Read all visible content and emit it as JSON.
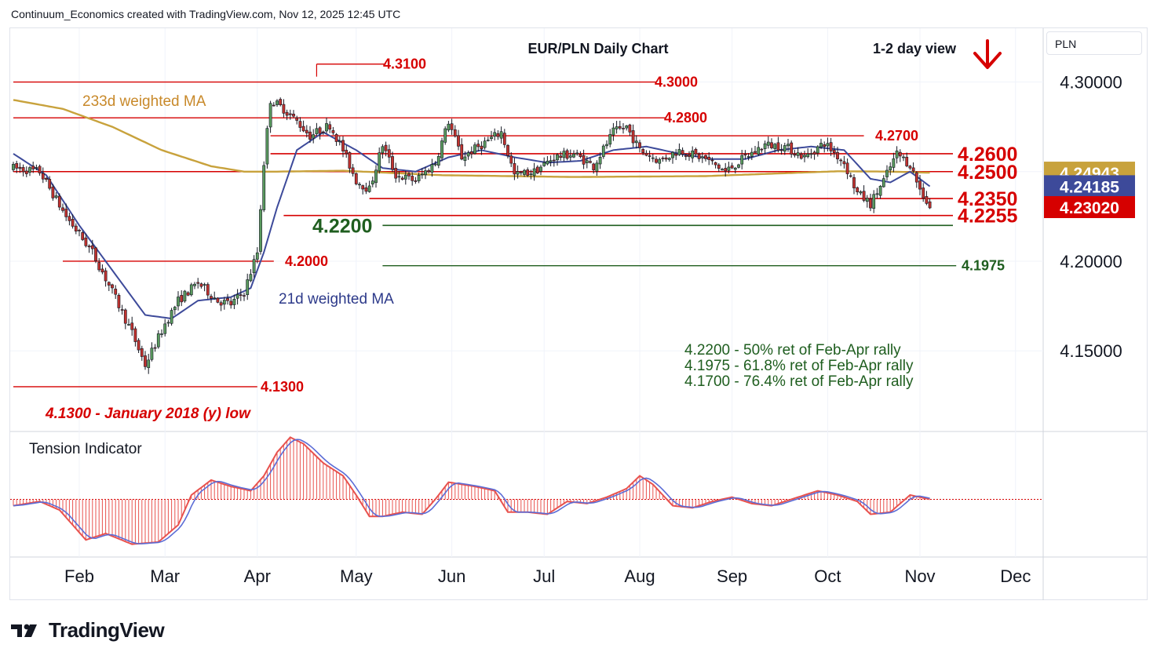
{
  "header": {
    "attribution": "Continuum_Economics created with TradingView.com, Nov 12, 2025 12:45 UTC"
  },
  "brand": {
    "name": "TradingView"
  },
  "currency_label": "PLN",
  "chart_data": [
    {
      "type": "candlestick",
      "title": "EUR/PLN Daily Chart",
      "view_label": "1-2 day view",
      "view_icon": "arrow-down-icon",
      "ylim": [
        4.105,
        4.33
      ],
      "y_ticks": [
        "4.30000",
        "4.20000",
        "4.15000"
      ],
      "x_ticks": [
        "Feb",
        "Mar",
        "Apr",
        "May",
        "Jun",
        "Jul",
        "Aug",
        "Sep",
        "Oct",
        "Nov",
        "Dec"
      ],
      "price_badges": [
        {
          "value": "4.24943",
          "color": "#c8a23c",
          "y": 4.24943
        },
        {
          "value": "4.24185",
          "color": "#3d4a9a",
          "y": 4.24185
        },
        {
          "value": "4.23020",
          "color": "#d60000",
          "y": 4.2302
        }
      ],
      "levels": [
        {
          "label": "4.3100",
          "value": 4.31,
          "color": "#d60000",
          "style": "small"
        },
        {
          "label": "4.3000",
          "value": 4.3,
          "color": "#d60000",
          "style": "small"
        },
        {
          "label": "4.2800",
          "value": 4.28,
          "color": "#d60000",
          "style": "small"
        },
        {
          "label": "4.2700",
          "value": 4.27,
          "color": "#d60000",
          "style": "small"
        },
        {
          "label": "4.2600",
          "value": 4.26,
          "color": "#d60000",
          "style": "large"
        },
        {
          "label": "4.2500",
          "value": 4.25,
          "color": "#d60000",
          "style": "large"
        },
        {
          "label": "4.2350",
          "value": 4.235,
          "color": "#d60000",
          "style": "large"
        },
        {
          "label": "4.2255",
          "value": 4.2255,
          "color": "#d60000",
          "style": "large"
        },
        {
          "label": "4.2200",
          "value": 4.22,
          "color": "#1f5e1f",
          "style": "large"
        },
        {
          "label": "4.2000",
          "value": 4.2,
          "color": "#d60000",
          "style": "small"
        },
        {
          "label": "4.1975",
          "value": 4.1975,
          "color": "#1f5e1f",
          "style": "small"
        },
        {
          "label": "4.1300",
          "value": 4.13,
          "color": "#d60000",
          "style": "small"
        }
      ],
      "ma_labels": {
        "ma233": "233d weighted MA",
        "ma21": "21d weighted MA"
      },
      "annotations": {
        "low_note": "4.1300 - January 2018 (y) low",
        "retracements": [
          "4.2200 - 50% ret of Feb-Apr rally",
          "4.1975 - 61.8% ret of Feb-Apr rally",
          "4.1700 - 76.4% ret of Feb-Apr rally"
        ]
      },
      "price_anchors": [
        [
          0,
          4.252
        ],
        [
          8,
          4.25
        ],
        [
          16,
          4.225
        ],
        [
          24,
          4.205
        ],
        [
          30,
          4.183
        ],
        [
          36,
          4.16
        ],
        [
          40,
          4.142
        ],
        [
          46,
          4.165
        ],
        [
          50,
          4.178
        ],
        [
          56,
          4.188
        ],
        [
          62,
          4.178
        ],
        [
          66,
          4.176
        ],
        [
          70,
          4.183
        ],
        [
          74,
          4.205
        ],
        [
          76,
          4.255
        ],
        [
          78,
          4.29
        ],
        [
          82,
          4.285
        ],
        [
          86,
          4.278
        ],
        [
          90,
          4.27
        ],
        [
          96,
          4.276
        ],
        [
          100,
          4.262
        ],
        [
          104,
          4.245
        ],
        [
          108,
          4.24
        ],
        [
          112,
          4.265
        ],
        [
          116,
          4.248
        ],
        [
          122,
          4.245
        ],
        [
          128,
          4.255
        ],
        [
          132,
          4.278
        ],
        [
          136,
          4.258
        ],
        [
          142,
          4.265
        ],
        [
          148,
          4.272
        ],
        [
          152,
          4.248
        ],
        [
          158,
          4.25
        ],
        [
          164,
          4.258
        ],
        [
          170,
          4.26
        ],
        [
          176,
          4.253
        ],
        [
          182,
          4.272
        ],
        [
          186,
          4.275
        ],
        [
          190,
          4.262
        ],
        [
          196,
          4.256
        ],
        [
          202,
          4.262
        ],
        [
          210,
          4.257
        ],
        [
          216,
          4.25
        ],
        [
          222,
          4.258
        ],
        [
          228,
          4.265
        ],
        [
          234,
          4.264
        ],
        [
          240,
          4.258
        ],
        [
          246,
          4.266
        ],
        [
          252,
          4.255
        ],
        [
          256,
          4.238
        ],
        [
          260,
          4.232
        ],
        [
          264,
          4.245
        ],
        [
          268,
          4.26
        ],
        [
          272,
          4.254
        ],
        [
          275,
          4.24
        ],
        [
          278,
          4.2302
        ]
      ],
      "ma21_anchors": [
        [
          0,
          4.26
        ],
        [
          10,
          4.248
        ],
        [
          20,
          4.22
        ],
        [
          30,
          4.195
        ],
        [
          40,
          4.17
        ],
        [
          48,
          4.168
        ],
        [
          56,
          4.178
        ],
        [
          66,
          4.18
        ],
        [
          72,
          4.185
        ],
        [
          76,
          4.205
        ],
        [
          80,
          4.23
        ],
        [
          86,
          4.262
        ],
        [
          94,
          4.272
        ],
        [
          104,
          4.262
        ],
        [
          112,
          4.252
        ],
        [
          122,
          4.25
        ],
        [
          132,
          4.258
        ],
        [
          142,
          4.262
        ],
        [
          152,
          4.258
        ],
        [
          162,
          4.255
        ],
        [
          172,
          4.256
        ],
        [
          182,
          4.262
        ],
        [
          192,
          4.264
        ],
        [
          202,
          4.26
        ],
        [
          212,
          4.257
        ],
        [
          222,
          4.257
        ],
        [
          232,
          4.262
        ],
        [
          242,
          4.264
        ],
        [
          252,
          4.262
        ],
        [
          260,
          4.246
        ],
        [
          266,
          4.244
        ],
        [
          272,
          4.25
        ],
        [
          278,
          4.2418
        ]
      ],
      "ma233_anchors": [
        [
          0,
          4.29
        ],
        [
          15,
          4.285
        ],
        [
          30,
          4.275
        ],
        [
          45,
          4.262
        ],
        [
          60,
          4.253
        ],
        [
          70,
          4.25
        ],
        [
          80,
          4.25
        ],
        [
          100,
          4.2505
        ],
        [
          130,
          4.248
        ],
        [
          170,
          4.247
        ],
        [
          210,
          4.2475
        ],
        [
          250,
          4.2502
        ],
        [
          266,
          4.25
        ],
        [
          278,
          4.2494
        ]
      ]
    },
    {
      "type": "indicator",
      "title": "Tension Indicator",
      "ylim": [
        -1.35,
        1.55
      ],
      "anchors": [
        [
          0,
          -0.15
        ],
        [
          8,
          -0.05
        ],
        [
          14,
          -0.25
        ],
        [
          22,
          -0.95
        ],
        [
          28,
          -0.8
        ],
        [
          36,
          -1.05
        ],
        [
          44,
          -1.0
        ],
        [
          50,
          -0.6
        ],
        [
          54,
          0.1
        ],
        [
          60,
          0.45
        ],
        [
          66,
          0.3
        ],
        [
          72,
          0.2
        ],
        [
          76,
          0.55
        ],
        [
          80,
          1.1
        ],
        [
          84,
          1.45
        ],
        [
          88,
          1.3
        ],
        [
          94,
          0.85
        ],
        [
          100,
          0.55
        ],
        [
          104,
          0.1
        ],
        [
          108,
          -0.4
        ],
        [
          112,
          -0.4
        ],
        [
          118,
          -0.3
        ],
        [
          124,
          -0.35
        ],
        [
          128,
          0.0
        ],
        [
          132,
          0.4
        ],
        [
          140,
          0.3
        ],
        [
          146,
          0.2
        ],
        [
          150,
          -0.3
        ],
        [
          156,
          -0.3
        ],
        [
          162,
          -0.35
        ],
        [
          168,
          -0.05
        ],
        [
          174,
          -0.1
        ],
        [
          180,
          0.05
        ],
        [
          186,
          0.25
        ],
        [
          190,
          0.55
        ],
        [
          194,
          0.35
        ],
        [
          200,
          -0.15
        ],
        [
          206,
          -0.2
        ],
        [
          212,
          -0.05
        ],
        [
          218,
          0.05
        ],
        [
          224,
          -0.1
        ],
        [
          230,
          -0.15
        ],
        [
          238,
          0.05
        ],
        [
          244,
          0.2
        ],
        [
          250,
          0.1
        ],
        [
          256,
          -0.05
        ],
        [
          260,
          -0.35
        ],
        [
          266,
          -0.3
        ],
        [
          272,
          0.1
        ],
        [
          278,
          0.0
        ]
      ]
    }
  ]
}
